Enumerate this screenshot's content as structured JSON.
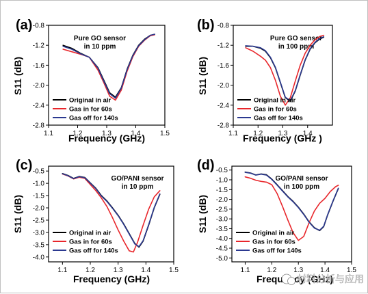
{
  "chart_data": [
    {
      "panel": "(a)",
      "type": "line",
      "annotation": [
        "Pure GO sensor",
        "in 10 ppm"
      ],
      "xlabel": "Frequency (GHz)",
      "ylabel": "S11 (dB)",
      "xlim": [
        1.1,
        1.5
      ],
      "ylim": [
        -2.8,
        -0.8
      ],
      "xticks": [
        "1.1",
        "1.2",
        "1.3",
        "1.4",
        "1.5"
      ],
      "yticks": [
        "-0.8",
        "-1.2",
        "-1.6",
        "-2.0",
        "-2.4",
        "-2.8"
      ],
      "legend_position": "bottom-left",
      "series": [
        {
          "name": "Original in air",
          "color": "#000000",
          "x": [
            1.15,
            1.18,
            1.21,
            1.24,
            1.27,
            1.29,
            1.31,
            1.33,
            1.35,
            1.37,
            1.39,
            1.41,
            1.43,
            1.45,
            1.465
          ],
          "y": [
            -1.2,
            -1.26,
            -1.36,
            -1.44,
            -1.65,
            -1.9,
            -2.15,
            -2.24,
            -2.05,
            -1.68,
            -1.4,
            -1.2,
            -1.08,
            -1.0,
            -0.98
          ]
        },
        {
          "name": "Gas in for 60s",
          "color": "#e8262b",
          "x": [
            1.15,
            1.18,
            1.21,
            1.24,
            1.27,
            1.29,
            1.31,
            1.33,
            1.35,
            1.37,
            1.39,
            1.41,
            1.43,
            1.45,
            1.465
          ],
          "y": [
            -1.28,
            -1.33,
            -1.38,
            -1.44,
            -1.7,
            -1.95,
            -2.22,
            -2.3,
            -2.1,
            -1.72,
            -1.43,
            -1.22,
            -1.1,
            -1.01,
            -0.99
          ]
        },
        {
          "name": "Gas off for 140s",
          "color": "#2b3990",
          "x": [
            1.15,
            1.18,
            1.21,
            1.24,
            1.27,
            1.29,
            1.31,
            1.33,
            1.35,
            1.37,
            1.39,
            1.41,
            1.43,
            1.45,
            1.465
          ],
          "y": [
            -1.22,
            -1.28,
            -1.37,
            -1.44,
            -1.66,
            -1.92,
            -2.17,
            -2.26,
            -2.06,
            -1.69,
            -1.41,
            -1.21,
            -1.09,
            -1.0,
            -0.98
          ]
        }
      ]
    },
    {
      "panel": "(b)",
      "type": "line",
      "annotation": [
        "Pure GO sensor",
        "in 100 ppm"
      ],
      "xlabel": "Frequency (GHz )",
      "ylabel": "S11 (dB)",
      "xlim": [
        1.1,
        1.5
      ],
      "ylim": [
        -2.8,
        -0.8
      ],
      "xticks": [
        "1.1",
        "1.2",
        "1.3",
        "1.4"
      ],
      "yticks": [
        "-0.8",
        "-1.2",
        "-1.6",
        "-2.0",
        "-2.4",
        "-2.8"
      ],
      "legend_position": "bottom-left",
      "series": [
        {
          "name": "Original in air",
          "color": "#000000",
          "x": [
            1.15,
            1.18,
            1.21,
            1.23,
            1.25,
            1.27,
            1.29,
            1.31,
            1.33,
            1.35,
            1.37,
            1.39,
            1.41,
            1.43,
            1.45,
            1.465
          ],
          "y": [
            -1.22,
            -1.22,
            -1.26,
            -1.32,
            -1.45,
            -1.65,
            -1.95,
            -2.25,
            -2.32,
            -2.12,
            -1.8,
            -1.5,
            -1.28,
            -1.15,
            -1.07,
            -1.04
          ]
        },
        {
          "name": "Gas in for 60s",
          "color": "#e8262b",
          "x": [
            1.15,
            1.18,
            1.21,
            1.23,
            1.25,
            1.27,
            1.29,
            1.31,
            1.33,
            1.35,
            1.37,
            1.39,
            1.41,
            1.43,
            1.45,
            1.465
          ],
          "y": [
            -1.25,
            -1.32,
            -1.42,
            -1.5,
            -1.65,
            -1.9,
            -2.22,
            -2.4,
            -2.25,
            -1.92,
            -1.6,
            -1.36,
            -1.2,
            -1.09,
            -1.02,
            -1.0
          ]
        },
        {
          "name": "Gas off for 140s",
          "color": "#2b3990",
          "x": [
            1.15,
            1.18,
            1.21,
            1.23,
            1.25,
            1.27,
            1.29,
            1.31,
            1.33,
            1.35,
            1.37,
            1.39,
            1.41,
            1.43,
            1.45,
            1.465
          ],
          "y": [
            -1.21,
            -1.22,
            -1.25,
            -1.31,
            -1.44,
            -1.64,
            -1.94,
            -2.24,
            -2.31,
            -2.11,
            -1.79,
            -1.49,
            -1.27,
            -1.14,
            -1.06,
            -1.03
          ]
        }
      ]
    },
    {
      "panel": "(c)",
      "type": "line",
      "annotation": [
        "GO/PANI sensor",
        "in 10 ppm"
      ],
      "xlabel": "Frequency (GHz)",
      "ylabel": "S11 (dB)",
      "xlim": [
        1.05,
        1.5
      ],
      "ylim": [
        -4.2,
        -0.3
      ],
      "xticks": [
        "1.1",
        "1.2",
        "1.3",
        "1.4",
        "1.5"
      ],
      "yticks": [
        "-0.5",
        "-1.0",
        "-1.5",
        "-2.0",
        "-2.5",
        "-3.0",
        "-3.5",
        "-4.0"
      ],
      "legend_position": "bottom-left",
      "series": [
        {
          "name": "Original in air",
          "color": "#000000",
          "x": [
            1.1,
            1.12,
            1.14,
            1.16,
            1.18,
            1.2,
            1.22,
            1.24,
            1.26,
            1.28,
            1.3,
            1.32,
            1.34,
            1.36,
            1.375,
            1.39,
            1.41,
            1.43,
            1.45
          ],
          "y": [
            -0.6,
            -0.68,
            -0.8,
            -0.72,
            -0.76,
            -0.98,
            -1.2,
            -1.5,
            -1.72,
            -2.0,
            -2.3,
            -2.65,
            -3.05,
            -3.45,
            -3.6,
            -3.35,
            -2.7,
            -2.0,
            -1.45
          ]
        },
        {
          "name": "Gas in for 60s",
          "color": "#e8262b",
          "x": [
            1.1,
            1.12,
            1.14,
            1.16,
            1.18,
            1.2,
            1.22,
            1.24,
            1.26,
            1.28,
            1.3,
            1.32,
            1.34,
            1.355,
            1.37,
            1.39,
            1.41,
            1.43,
            1.45
          ],
          "y": [
            -0.62,
            -0.7,
            -0.82,
            -0.75,
            -0.8,
            -1.05,
            -1.3,
            -1.6,
            -1.95,
            -2.4,
            -2.9,
            -3.35,
            -3.75,
            -3.8,
            -3.4,
            -2.7,
            -2.05,
            -1.55,
            -1.3
          ]
        },
        {
          "name": "Gas off for 140s",
          "color": "#2b3990",
          "x": [
            1.1,
            1.12,
            1.14,
            1.16,
            1.18,
            1.2,
            1.22,
            1.24,
            1.26,
            1.28,
            1.3,
            1.32,
            1.34,
            1.36,
            1.375,
            1.39,
            1.41,
            1.43,
            1.45
          ],
          "y": [
            -0.61,
            -0.69,
            -0.81,
            -0.73,
            -0.77,
            -0.99,
            -1.22,
            -1.52,
            -1.74,
            -2.02,
            -2.32,
            -2.67,
            -3.07,
            -3.47,
            -3.58,
            -3.33,
            -2.68,
            -1.98,
            -1.43
          ]
        }
      ]
    },
    {
      "panel": "(d)",
      "type": "line",
      "annotation": [
        "GO/PANI sensor",
        "in 100 ppm"
      ],
      "xlabel": "Frequency (GHz)",
      "ylabel": "S11 (dB)",
      "xlim": [
        1.05,
        1.5
      ],
      "ylim": [
        -5.2,
        -0.3
      ],
      "xticks": [
        "1.1",
        "1.2",
        "1.3",
        "1.4",
        "1.5"
      ],
      "yticks": [
        "-0.5",
        "-1.0",
        "-1.5",
        "-2.0",
        "-2.5",
        "-3.0",
        "-3.5",
        "-4.0",
        "-4.5",
        "-5.0"
      ],
      "legend_position": "bottom-left",
      "series": [
        {
          "name": "Original in air",
          "color": "#000000",
          "x": [
            1.1,
            1.12,
            1.14,
            1.16,
            1.18,
            1.2,
            1.22,
            1.24,
            1.26,
            1.28,
            1.3,
            1.32,
            1.34,
            1.36,
            1.38,
            1.395,
            1.41,
            1.43,
            1.45
          ],
          "y": [
            -0.6,
            -0.65,
            -0.75,
            -0.7,
            -0.74,
            -0.96,
            -1.25,
            -1.55,
            -1.85,
            -2.1,
            -2.4,
            -2.75,
            -3.15,
            -3.45,
            -3.6,
            -3.4,
            -2.8,
            -2.1,
            -1.45
          ]
        },
        {
          "name": "Gas in for 60s",
          "color": "#e8262b",
          "x": [
            1.1,
            1.12,
            1.14,
            1.16,
            1.18,
            1.2,
            1.22,
            1.24,
            1.26,
            1.28,
            1.3,
            1.32,
            1.34,
            1.36,
            1.38,
            1.4,
            1.42,
            1.44,
            1.45
          ],
          "y": [
            -0.85,
            -0.92,
            -1.02,
            -1.08,
            -1.12,
            -1.25,
            -1.7,
            -2.35,
            -3.05,
            -3.7,
            -4.1,
            -3.9,
            -3.2,
            -2.6,
            -2.2,
            -1.95,
            -1.6,
            -1.35,
            -1.28
          ]
        },
        {
          "name": "Gas off for 140s",
          "color": "#2b3990",
          "x": [
            1.1,
            1.12,
            1.14,
            1.16,
            1.18,
            1.2,
            1.22,
            1.24,
            1.26,
            1.28,
            1.3,
            1.32,
            1.34,
            1.36,
            1.38,
            1.395,
            1.41,
            1.43,
            1.45
          ],
          "y": [
            -0.62,
            -0.66,
            -0.76,
            -0.71,
            -0.76,
            -0.98,
            -1.27,
            -1.57,
            -1.87,
            -2.12,
            -2.42,
            -2.77,
            -3.17,
            -3.47,
            -3.58,
            -3.38,
            -2.78,
            -2.08,
            -1.43
          ]
        }
      ]
    }
  ],
  "watermark": {
    "text": "材料分析与应用",
    "icon": "wechat-icon"
  }
}
